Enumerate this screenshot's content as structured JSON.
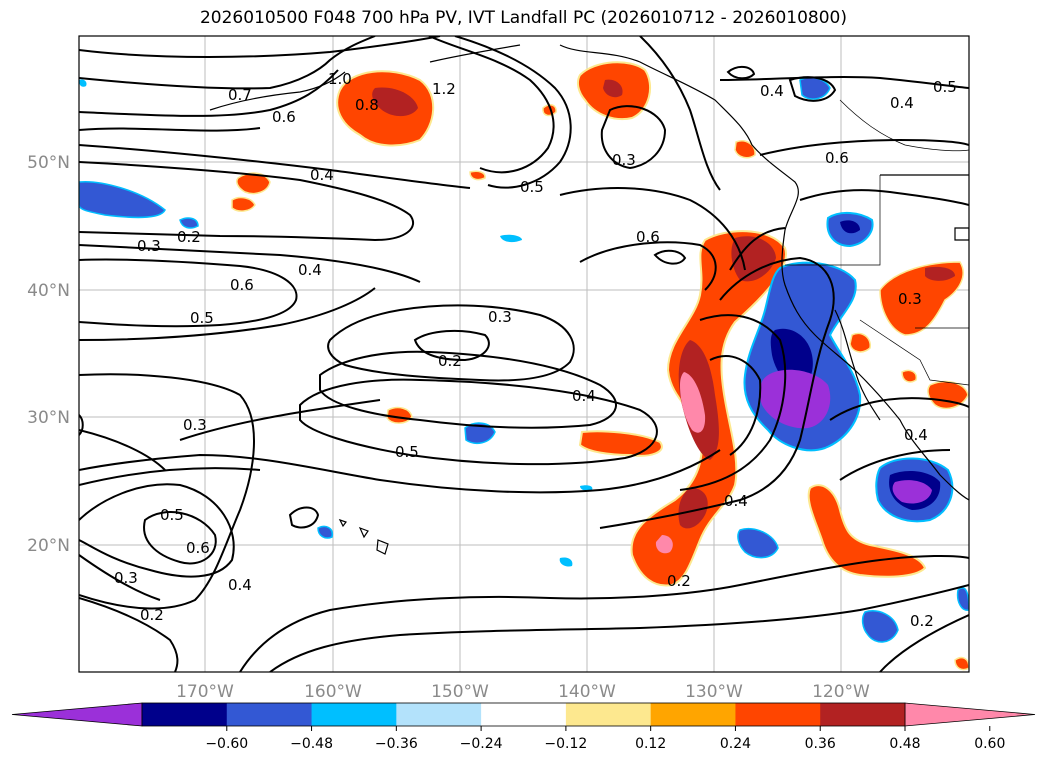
{
  "title": "2026010500 F048 700 hPa PV, IVT Landfall PC (2026010712 - 2026010800)",
  "map": {
    "lat_labels": [
      "50°N",
      "40°N",
      "30°N",
      "20°N"
    ],
    "lon_labels": [
      "170°W",
      "160°W",
      "150°W",
      "140°W",
      "130°W",
      "120°W"
    ],
    "contour_labels": [
      "0.7",
      "0.6",
      "1.0",
      "0.8",
      "1.2",
      "0.4",
      "0.5",
      "0.3",
      "0.4",
      "0.5",
      "0.3",
      "0.2",
      "0.4",
      "0.6",
      "0.5",
      "0.3",
      "0.2",
      "0.6",
      "0.4",
      "0.3",
      "0.5",
      "0.6",
      "0.5",
      "0.6",
      "0.4",
      "0.3",
      "0.2",
      "0.4",
      "0.2",
      "0.4",
      "0.3",
      "0.4",
      "0.2"
    ],
    "colors": {
      "neg_060": "#9b30d9",
      "neg_048": "#00008b",
      "neg_036": "#3358d4",
      "neg_024": "#00bfff",
      "neg_012": "#b3e2fb",
      "pos_012": "#fde88f",
      "pos_024": "#ffa500",
      "pos_036": "#ff4500",
      "pos_048": "#b22222",
      "pos_060": "#ff88aa"
    }
  },
  "colorbar": {
    "ticks": [
      "−0.60",
      "−0.48",
      "−0.36",
      "−0.24",
      "−0.12",
      "0.12",
      "0.24",
      "0.36",
      "0.48",
      "0.60"
    ],
    "bins": [
      "#9b30d9",
      "#00008b",
      "#3358d4",
      "#00bfff",
      "#b3e2fb",
      "#ffffff",
      "#fde88f",
      "#ffa500",
      "#ff4500",
      "#b22222",
      "#ff88aa"
    ]
  }
}
